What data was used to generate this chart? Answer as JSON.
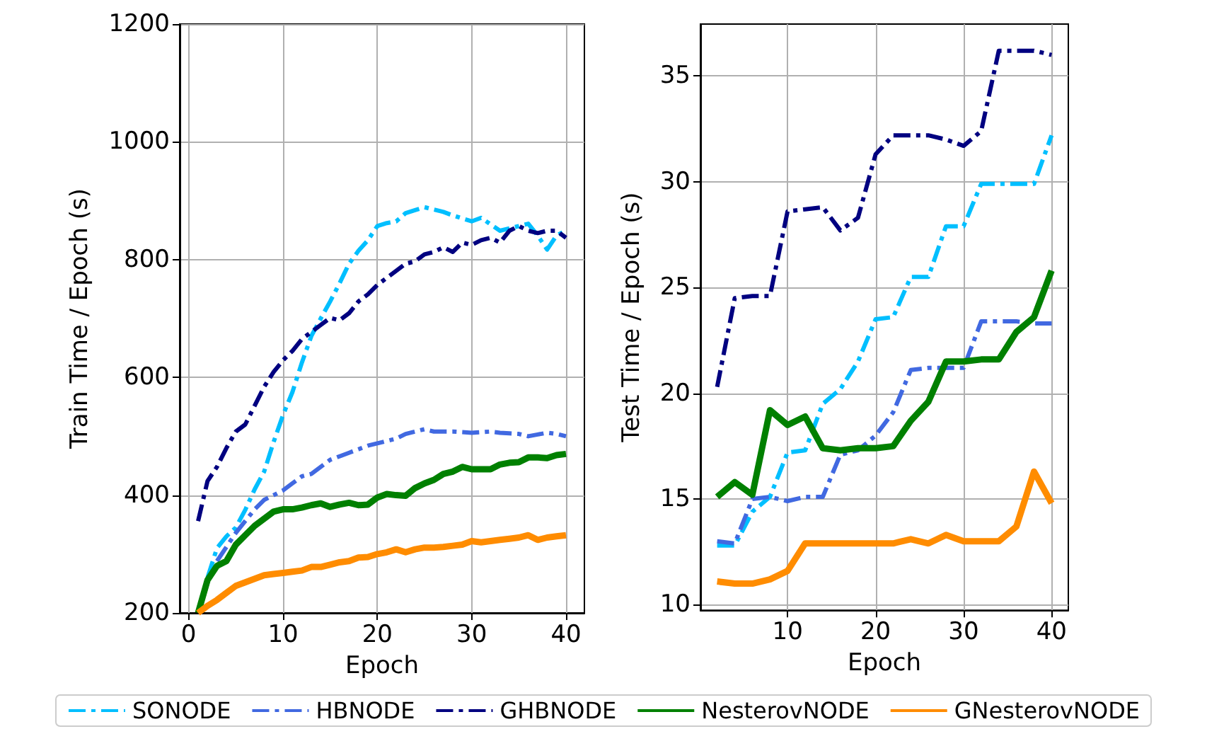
{
  "chart_data": [
    {
      "type": "line",
      "xlabel": "Epoch",
      "ylabel": "Train Time / Epoch (s)",
      "x": [
        1,
        2,
        3,
        4,
        5,
        6,
        7,
        8,
        9,
        10,
        11,
        12,
        13,
        14,
        15,
        16,
        17,
        18,
        19,
        20,
        21,
        22,
        23,
        24,
        25,
        26,
        27,
        28,
        29,
        30,
        31,
        32,
        33,
        34,
        35,
        36,
        37,
        38,
        39,
        40
      ],
      "series": [
        {
          "name": "SONODE",
          "color": "#00bfff",
          "line_style": "dashdot",
          "values": [
            null,
            260,
            310,
            330,
            345,
            375,
            410,
            440,
            490,
            536,
            575,
            625,
            670,
            700,
            729,
            760,
            793,
            815,
            833,
            857,
            862,
            865,
            879,
            884,
            889,
            885,
            881,
            875,
            870,
            865,
            871,
            860,
            849,
            853,
            857,
            861,
            841,
            817,
            841,
            849
          ]
        },
        {
          "name": "HBNODE",
          "color": "#4169e1",
          "line_style": "dashdot",
          "values": [
            null,
            null,
            288,
            312,
            336,
            356,
            376,
            392,
            400,
            408,
            420,
            432,
            436,
            448,
            460,
            466,
            472,
            478,
            484,
            488,
            492,
            496,
            504,
            508,
            512,
            508,
            508,
            508,
            507,
            506,
            507,
            508,
            506,
            505,
            504,
            500,
            503,
            506,
            504,
            500
          ]
        },
        {
          "name": "GHBNODE",
          "color": "#000080",
          "line_style": "dashdot",
          "values": [
            356,
            424,
            448,
            480,
            508,
            520,
            552,
            584,
            609,
            629,
            645,
            665,
            677,
            689,
            701,
            697,
            709,
            729,
            741,
            757,
            769,
            781,
            793,
            797,
            809,
            813,
            821,
            813,
            829,
            825,
            833,
            837,
            829,
            849,
            857,
            849,
            845,
            849,
            849,
            837
          ]
        },
        {
          "name": "NesterovNODE",
          "color": "#008000",
          "line_style": "solid",
          "values": [
            200,
            256,
            280,
            288,
            316,
            332,
            348,
            360,
            372,
            376,
            376,
            379,
            383,
            386,
            380,
            384,
            387,
            383,
            384,
            396,
            402,
            400,
            399,
            412,
            420,
            426,
            436,
            440,
            448,
            444,
            444,
            444,
            452,
            455,
            456,
            464,
            464,
            463,
            468,
            470
          ]
        },
        {
          "name": "GNesterovNODE",
          "color": "#ff8c00",
          "line_style": "solid",
          "values": [
            200,
            212,
            222,
            234,
            246,
            252,
            258,
            264,
            266,
            268,
            270,
            272,
            278,
            278,
            282,
            286,
            288,
            294,
            295,
            300,
            303,
            308,
            303,
            308,
            311,
            311,
            312,
            314,
            316,
            322,
            320,
            322,
            324,
            326,
            328,
            332,
            324,
            328,
            330,
            332
          ]
        }
      ],
      "xlim": [
        -0.95,
        41.95
      ],
      "xticks": [
        0,
        10,
        20,
        30,
        40
      ],
      "ylim": [
        200,
        1200
      ],
      "yticks": [
        200,
        400,
        600,
        800,
        1000,
        1200
      ],
      "grid": true,
      "legend": "bottom",
      "marker": "none"
    },
    {
      "type": "line",
      "xlabel": "Epoch",
      "ylabel": "Test Time / Epoch (s)",
      "x": [
        2,
        4,
        6,
        8,
        10,
        12,
        14,
        16,
        18,
        20,
        22,
        24,
        26,
        28,
        30,
        32,
        34,
        36,
        38,
        40
      ],
      "series": [
        {
          "name": "SONODE",
          "color": "#00bfff",
          "line_style": "dashdot",
          "values": [
            12.8,
            12.8,
            14.4,
            15.1,
            17.2,
            17.3,
            19.5,
            20.2,
            21.5,
            23.5,
            23.6,
            25.5,
            25.5,
            27.9,
            27.9,
            29.9,
            29.9,
            29.9,
            29.9,
            32.2
          ]
        },
        {
          "name": "HBNODE",
          "color": "#4169e1",
          "line_style": "dashdot",
          "values": [
            13.0,
            12.9,
            15.0,
            15.1,
            14.9,
            15.1,
            15.1,
            17.1,
            17.3,
            18.0,
            19.1,
            21.1,
            21.2,
            21.2,
            21.2,
            23.4,
            23.4,
            23.4,
            23.3,
            23.3
          ]
        },
        {
          "name": "GHBNODE",
          "color": "#000080",
          "line_style": "dashdot",
          "values": [
            20.3,
            24.5,
            24.6,
            24.6,
            28.6,
            28.7,
            28.8,
            27.7,
            28.3,
            31.3,
            32.2,
            32.2,
            32.2,
            32.0,
            31.7,
            32.4,
            36.2,
            36.2,
            36.2,
            36.0
          ]
        },
        {
          "name": "NesterovNODE",
          "color": "#008000",
          "line_style": "solid",
          "values": [
            15.1,
            15.8,
            15.2,
            19.2,
            18.5,
            18.9,
            17.4,
            17.3,
            17.4,
            17.4,
            17.5,
            18.7,
            19.6,
            21.5,
            21.5,
            21.6,
            21.6,
            22.9,
            23.6,
            25.8
          ]
        },
        {
          "name": "GNesterovNODE",
          "color": "#ff8c00",
          "line_style": "solid",
          "values": [
            11.1,
            11.0,
            11.0,
            11.2,
            11.6,
            12.9,
            12.9,
            12.9,
            12.9,
            12.9,
            12.9,
            13.1,
            12.9,
            13.3,
            13.0,
            13.0,
            13.0,
            13.7,
            16.3,
            14.8
          ]
        }
      ],
      "xlim": [
        0.1,
        41.9
      ],
      "xticks": [
        10,
        20,
        30,
        40
      ],
      "ylim": [
        9.74,
        37.46
      ],
      "yticks": [
        10,
        15,
        20,
        25,
        30,
        35
      ],
      "grid": true,
      "legend": "bottom",
      "marker": "none"
    }
  ]
}
